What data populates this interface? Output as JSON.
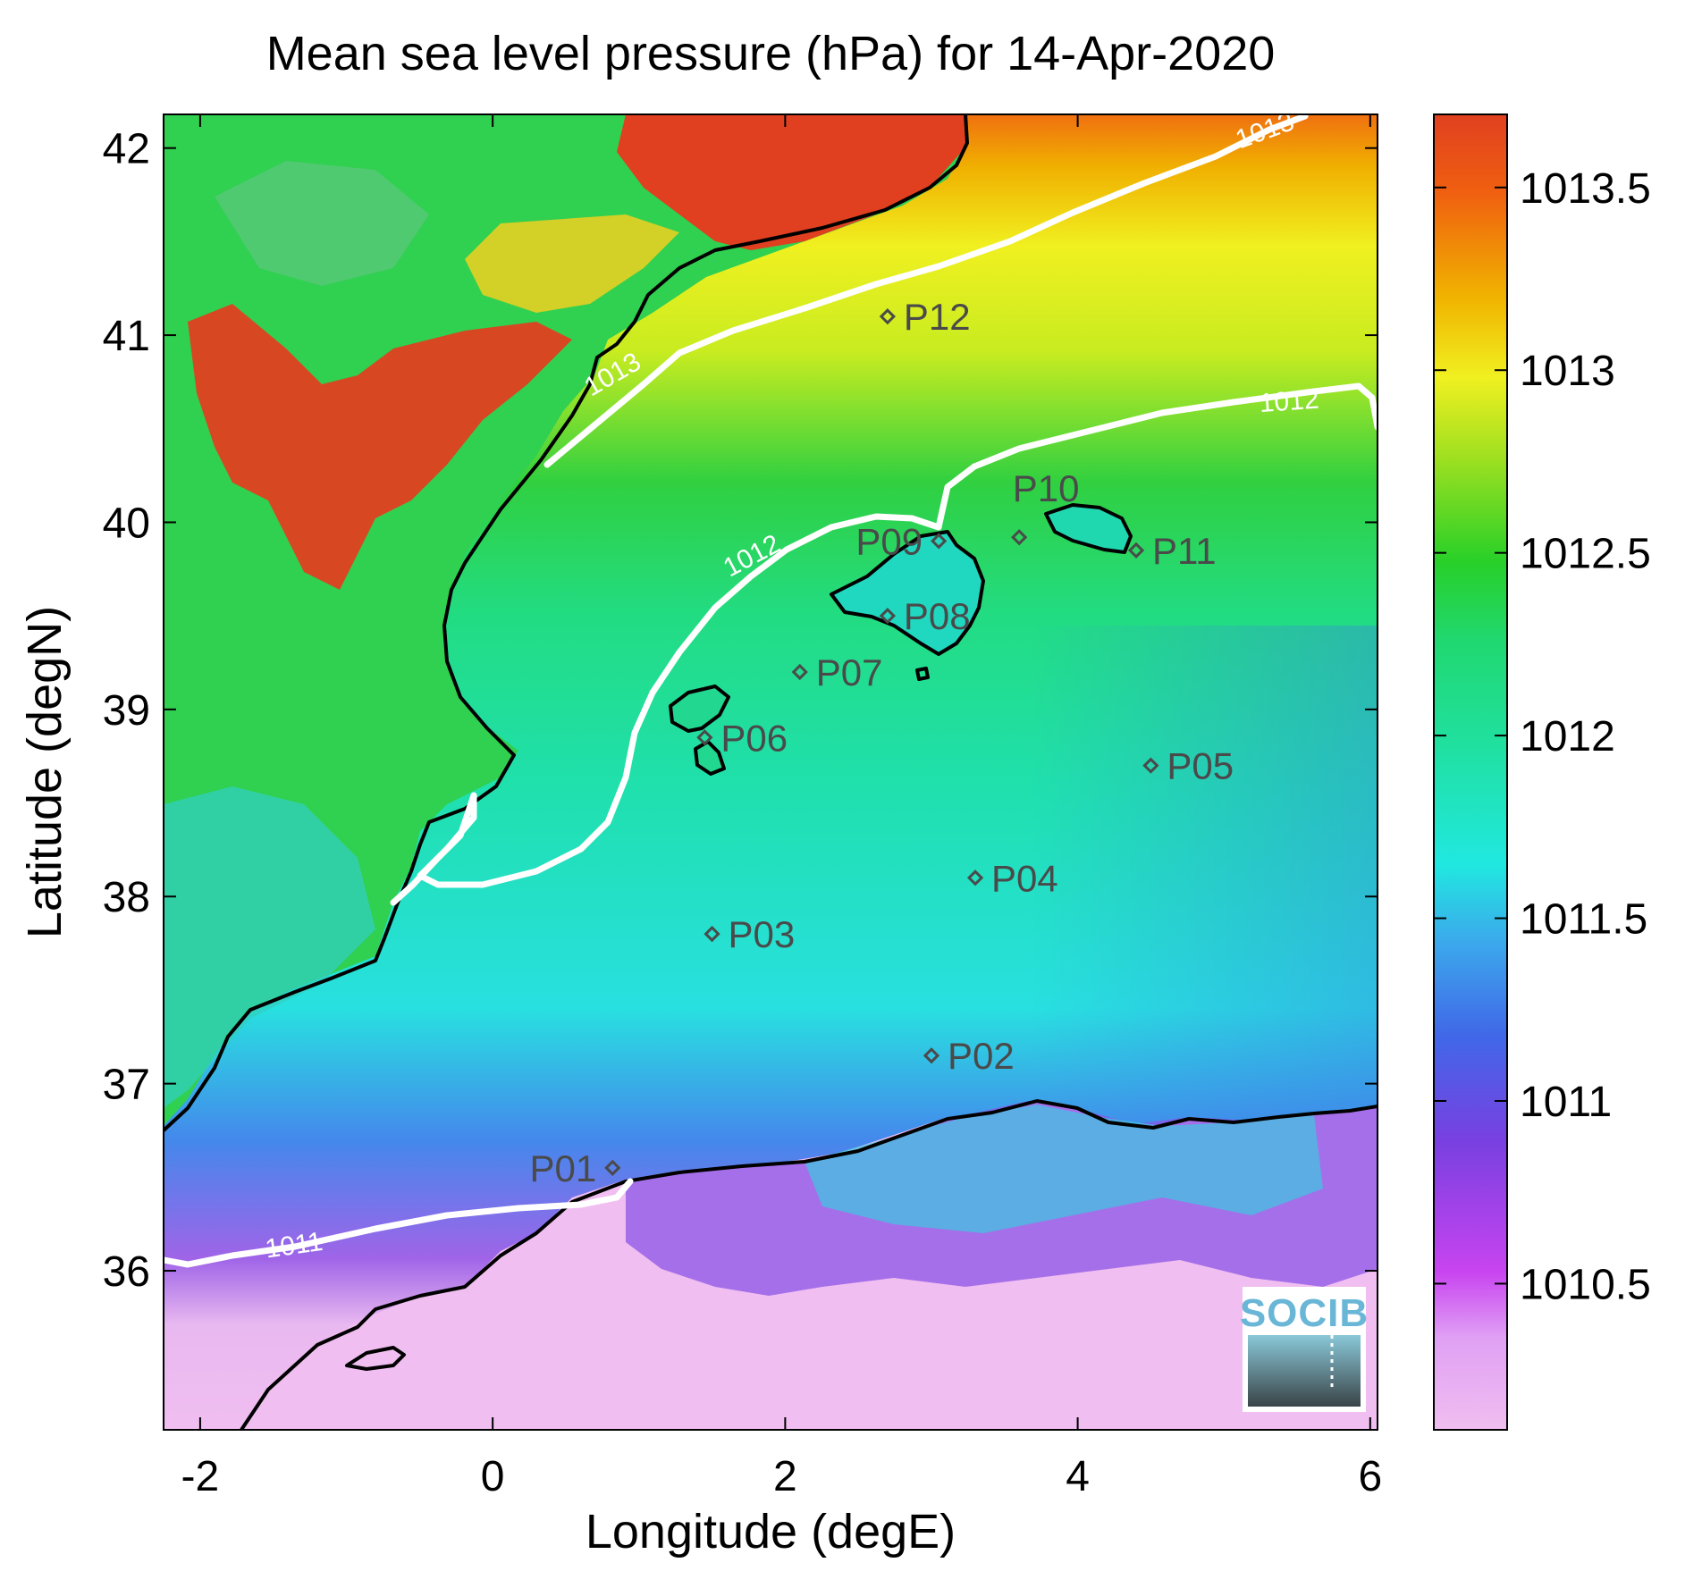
{
  "title": "Mean sea level pressure (hPa) for 14-Apr-2020",
  "xlabel": "Longitude (degE)",
  "ylabel": "Latitude (degN)",
  "map": {
    "lon_range": [
      -2.25,
      6.05
    ],
    "lat_range": [
      35.15,
      42.18
    ],
    "x_ticks": [
      {
        "value": -2,
        "label": "-2"
      },
      {
        "value": 0,
        "label": "0"
      },
      {
        "value": 2,
        "label": "2"
      },
      {
        "value": 4,
        "label": "4"
      },
      {
        "value": 6,
        "label": "6"
      }
    ],
    "y_ticks": [
      {
        "value": 36,
        "label": "36"
      },
      {
        "value": 37,
        "label": "37"
      },
      {
        "value": 38,
        "label": "38"
      },
      {
        "value": 39,
        "label": "39"
      },
      {
        "value": 40,
        "label": "40"
      },
      {
        "value": 41,
        "label": "41"
      },
      {
        "value": 42,
        "label": "42"
      }
    ]
  },
  "colorbar": {
    "range": [
      1010.1,
      1013.7
    ],
    "ticks": [
      {
        "value": 1010.5,
        "label": "1010.5"
      },
      {
        "value": 1011,
        "label": "1011"
      },
      {
        "value": 1011.5,
        "label": "1011.5"
      },
      {
        "value": 1012,
        "label": "1012"
      },
      {
        "value": 1012.5,
        "label": "1012.5"
      },
      {
        "value": 1013,
        "label": "1013"
      },
      {
        "value": 1013.5,
        "label": "1013.5"
      }
    ],
    "colors": [
      "#f0bef0",
      "#c844f0",
      "#7840e0",
      "#3c78e8",
      "#20e8e0",
      "#20d870",
      "#28d028",
      "#a0e020",
      "#f0f020",
      "#f0b400",
      "#f06010",
      "#e04020"
    ]
  },
  "contours": [
    {
      "label": "1013",
      "label_lon": 0.85,
      "label_lat": 40.75,
      "angle": -30
    },
    {
      "label": "1013",
      "label_lon": 5.3,
      "label_lat": 42.05,
      "angle": -20
    },
    {
      "label": "1012",
      "label_lon": 1.8,
      "label_lat": 39.78,
      "angle": -28
    },
    {
      "label": "1012",
      "label_lon": 5.45,
      "label_lat": 40.6,
      "angle": -4
    },
    {
      "label": "1011",
      "label_lon": -1.35,
      "label_lat": 36.09,
      "angle": -8
    }
  ],
  "stations": [
    {
      "name": "P01",
      "lon": 0.82,
      "lat": 36.55,
      "label_side": "left"
    },
    {
      "name": "P02",
      "lon": 3.0,
      "lat": 37.15,
      "label_side": "right"
    },
    {
      "name": "P03",
      "lon": 1.5,
      "lat": 37.8,
      "label_side": "right"
    },
    {
      "name": "P04",
      "lon": 3.3,
      "lat": 38.1,
      "label_side": "right"
    },
    {
      "name": "P05",
      "lon": 4.5,
      "lat": 38.7,
      "label_side": "right"
    },
    {
      "name": "P06",
      "lon": 1.45,
      "lat": 38.85,
      "label_side": "right"
    },
    {
      "name": "P07",
      "lon": 2.1,
      "lat": 39.2,
      "label_side": "right"
    },
    {
      "name": "P08",
      "lon": 2.7,
      "lat": 39.5,
      "label_side": "right"
    },
    {
      "name": "P09",
      "lon": 3.05,
      "lat": 39.9,
      "label_side": "left"
    },
    {
      "name": "P10",
      "lon": 3.6,
      "lat": 39.92,
      "label_side": "above"
    },
    {
      "name": "P11",
      "lon": 4.4,
      "lat": 39.85,
      "label_side": "right"
    },
    {
      "name": "P12",
      "lon": 2.7,
      "lat": 41.1,
      "label_side": "right"
    }
  ],
  "logo": {
    "text": "SOCIB"
  }
}
